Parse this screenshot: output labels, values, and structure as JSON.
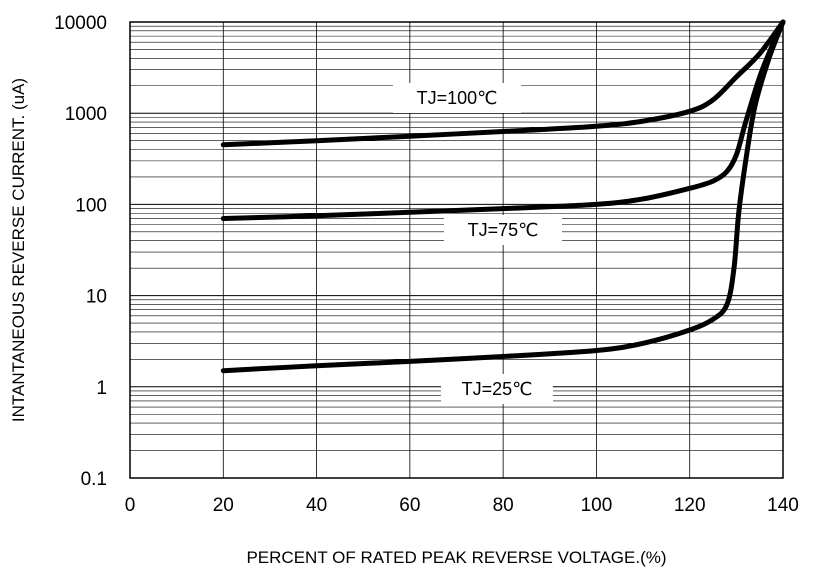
{
  "chart_data": {
    "type": "line",
    "title": "",
    "xlabel": "PERCENT OF RATED PEAK REVERSE VOLTAGE.(%)",
    "ylabel": "INTANTANEOUS REVERSE CURRENT. (uA)",
    "xlim": [
      0,
      140
    ],
    "ylim": [
      0.1,
      10000
    ],
    "yscale": "log",
    "grid": true,
    "x_ticks": [
      0,
      20,
      40,
      60,
      80,
      100,
      120,
      140
    ],
    "x_tick_labels": [
      "0",
      "20",
      "40",
      "60",
      "80",
      "100",
      "120",
      "140"
    ],
    "y_ticks": [
      0.1,
      1,
      10,
      100,
      1000,
      10000
    ],
    "y_tick_labels": [
      "0.1",
      "1",
      "10",
      "100",
      "1000",
      "10000"
    ],
    "series": [
      {
        "name": "TJ=100℃",
        "x": [
          20,
          40,
          60,
          80,
          100,
          110,
          120,
          125,
          130,
          135,
          140
        ],
        "y": [
          450,
          500,
          560,
          630,
          720,
          820,
          1050,
          1400,
          2500,
          4500,
          10000
        ]
      },
      {
        "name": "TJ=75℃",
        "x": [
          20,
          40,
          60,
          80,
          100,
          110,
          120,
          125,
          128,
          130,
          132,
          135,
          138,
          140
        ],
        "y": [
          70,
          75,
          82,
          90,
          100,
          115,
          150,
          180,
          230,
          350,
          800,
          2500,
          6000,
          10000
        ]
      },
      {
        "name": "TJ=25℃",
        "x": [
          20,
          40,
          60,
          80,
          100,
          110,
          120,
          125,
          128,
          129.5,
          130.5,
          132,
          134,
          137,
          140
        ],
        "y": [
          1.5,
          1.7,
          1.9,
          2.15,
          2.5,
          3.0,
          4.2,
          5.5,
          8,
          20,
          80,
          300,
          1200,
          4000,
          10000
        ]
      }
    ],
    "annotations": [
      {
        "text": "TJ=100℃"
      },
      {
        "text": "TJ=75℃"
      },
      {
        "text": "TJ=25℃"
      }
    ]
  }
}
